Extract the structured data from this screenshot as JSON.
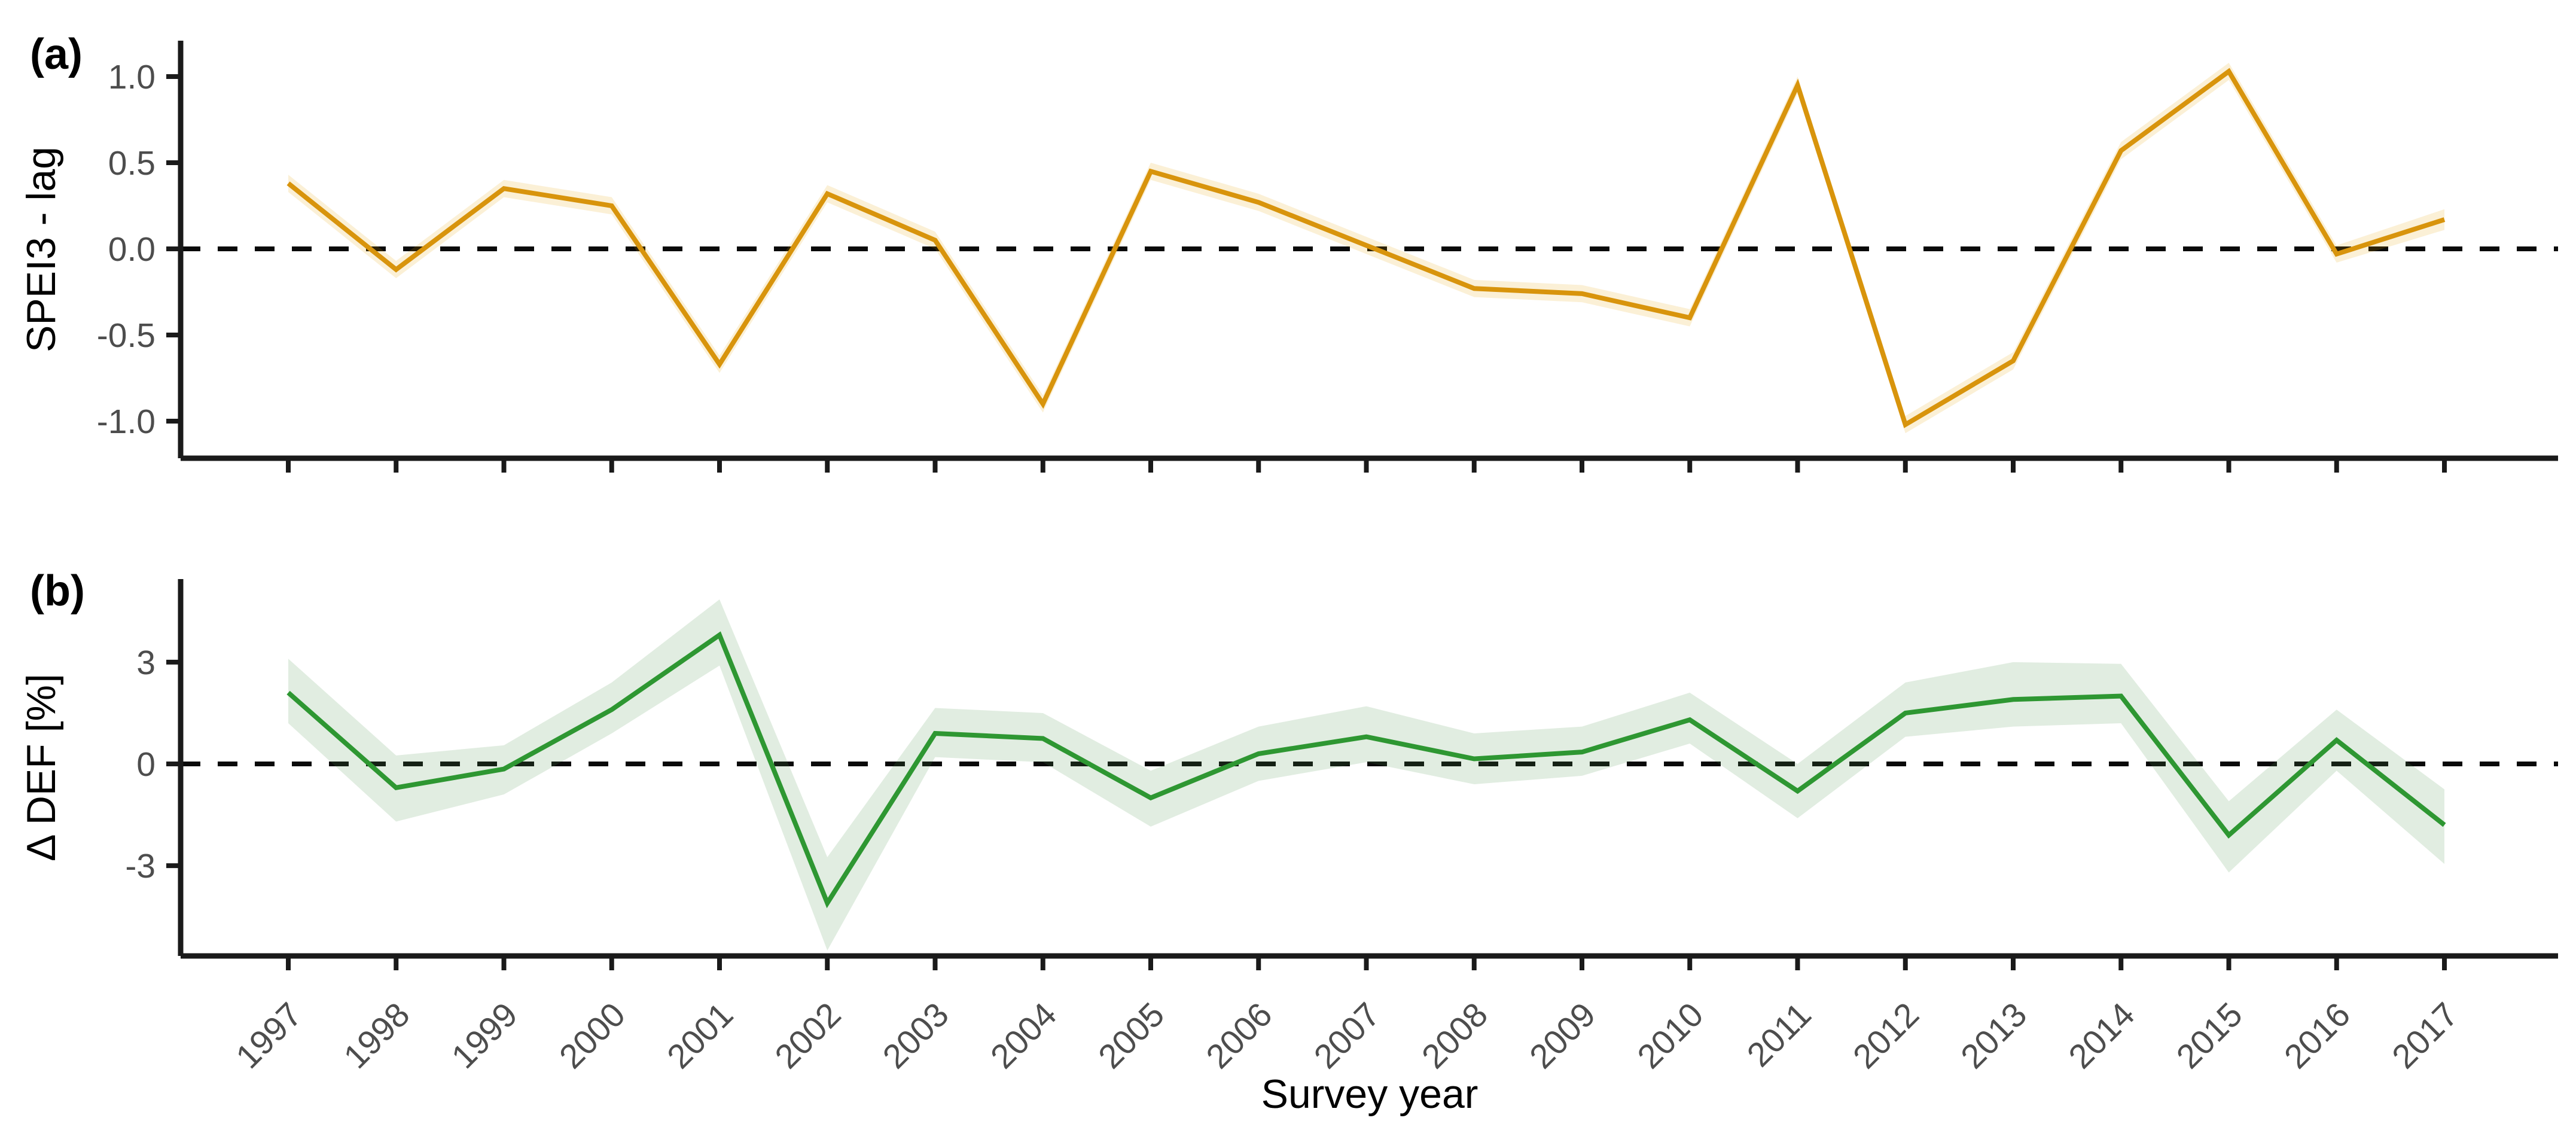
{
  "figure": {
    "panel_a_label": "(a)",
    "panel_b_label": "(b)",
    "x_axis_title": "Survey year"
  },
  "x_axis": {
    "tick_labels": [
      "1997",
      "1998",
      "1999",
      "2000",
      "2001",
      "2002",
      "2003",
      "2004",
      "2005",
      "2006",
      "2007",
      "2008",
      "2009",
      "2010",
      "2011",
      "2012",
      "2013",
      "2014",
      "2015",
      "2016",
      "2017"
    ]
  },
  "colors": {
    "reference_line": "#0a0a0a",
    "axis_line": "#1a1a1a",
    "tick_text": "#4d4d4d",
    "title_text": "#000000",
    "background": "#ffffff",
    "panel_a_line": "#D8940C",
    "panel_a_band": "rgba(230,159,0,0.16)",
    "panel_b_line": "#2E9732",
    "panel_b_band": "rgba(76,150,76,0.17)"
  },
  "chart_data": [
    {
      "type": "line",
      "panel": "a",
      "title": "",
      "ylabel": "SPEI3 - lag",
      "xlabel": "Survey year",
      "x": [
        1997,
        1998,
        1999,
        2000,
        2001,
        2002,
        2003,
        2004,
        2005,
        2006,
        2007,
        2008,
        2009,
        2010,
        2011,
        2012,
        2013,
        2014,
        2015,
        2016,
        2017
      ],
      "series": [
        {
          "name": "SPEI3 - lag",
          "values": [
            0.38,
            -0.12,
            0.35,
            0.25,
            -0.67,
            0.32,
            0.05,
            -0.9,
            0.45,
            0.27,
            0.02,
            -0.23,
            -0.26,
            -0.4,
            0.95,
            -1.02,
            -0.65,
            0.57,
            1.03,
            -0.03,
            0.17
          ]
        }
      ],
      "band": {
        "name": "confidence-ribbon",
        "upper": [
          0.43,
          -0.07,
          0.4,
          0.3,
          -0.62,
          0.37,
          0.1,
          -0.85,
          0.5,
          0.32,
          0.07,
          -0.18,
          -0.21,
          -0.35,
          1.0,
          -0.97,
          -0.6,
          0.62,
          1.08,
          0.02,
          0.23
        ],
        "lower": [
          0.33,
          -0.17,
          0.3,
          0.2,
          -0.72,
          0.27,
          0.0,
          -0.95,
          0.4,
          0.22,
          -0.03,
          -0.28,
          -0.31,
          -0.45,
          0.9,
          -1.07,
          -0.7,
          0.52,
          0.98,
          -0.08,
          0.11
        ]
      },
      "ytick_labels": [
        "1.0",
        "0.5",
        "0.0",
        "-0.5",
        "-1.0"
      ],
      "ytick_values": [
        1.0,
        0.5,
        0.0,
        -0.5,
        -1.0
      ],
      "ylim": [
        -1.21,
        1.21
      ],
      "reference_line_y": 0,
      "grid": false,
      "legend": "none",
      "line_color": "#D8940C",
      "band_color": "rgba(230,159,0,0.16)"
    },
    {
      "type": "line",
      "panel": "b",
      "title": "",
      "ylabel": "Δ DEF [%]",
      "xlabel": "Survey year",
      "x": [
        1997,
        1998,
        1999,
        2000,
        2001,
        2002,
        2003,
        2004,
        2005,
        2006,
        2007,
        2008,
        2009,
        2010,
        2011,
        2012,
        2013,
        2014,
        2015,
        2016,
        2017
      ],
      "series": [
        {
          "name": "Δ DEF [%]",
          "values": [
            2.1,
            -0.7,
            -0.15,
            1.6,
            3.8,
            -4.1,
            0.9,
            0.75,
            -1.0,
            0.3,
            0.8,
            0.15,
            0.35,
            1.3,
            -0.8,
            1.5,
            1.9,
            2.0,
            -2.1,
            0.7,
            -1.8
          ]
        }
      ],
      "band": {
        "name": "confidence-ribbon",
        "upper": [
          3.1,
          0.25,
          0.55,
          2.4,
          4.85,
          -2.75,
          1.65,
          1.5,
          -0.2,
          1.1,
          1.7,
          0.9,
          1.1,
          2.1,
          0.0,
          2.4,
          3.0,
          2.95,
          -1.1,
          1.6,
          -0.75
        ],
        "lower": [
          1.2,
          -1.7,
          -0.9,
          0.9,
          2.9,
          -5.5,
          0.2,
          0.05,
          -1.85,
          -0.5,
          0.05,
          -0.6,
          -0.35,
          0.6,
          -1.6,
          0.8,
          1.1,
          1.2,
          -3.2,
          -0.2,
          -2.95
        ]
      },
      "ytick_labels": [
        "3",
        "0",
        "-3"
      ],
      "ytick_values": [
        3,
        0,
        -3
      ],
      "ylim": [
        -5.66,
        5.45
      ],
      "reference_line_y": 0,
      "grid": false,
      "legend": "none",
      "line_color": "#2E9732",
      "band_color": "rgba(76,150,76,0.17)"
    }
  ]
}
